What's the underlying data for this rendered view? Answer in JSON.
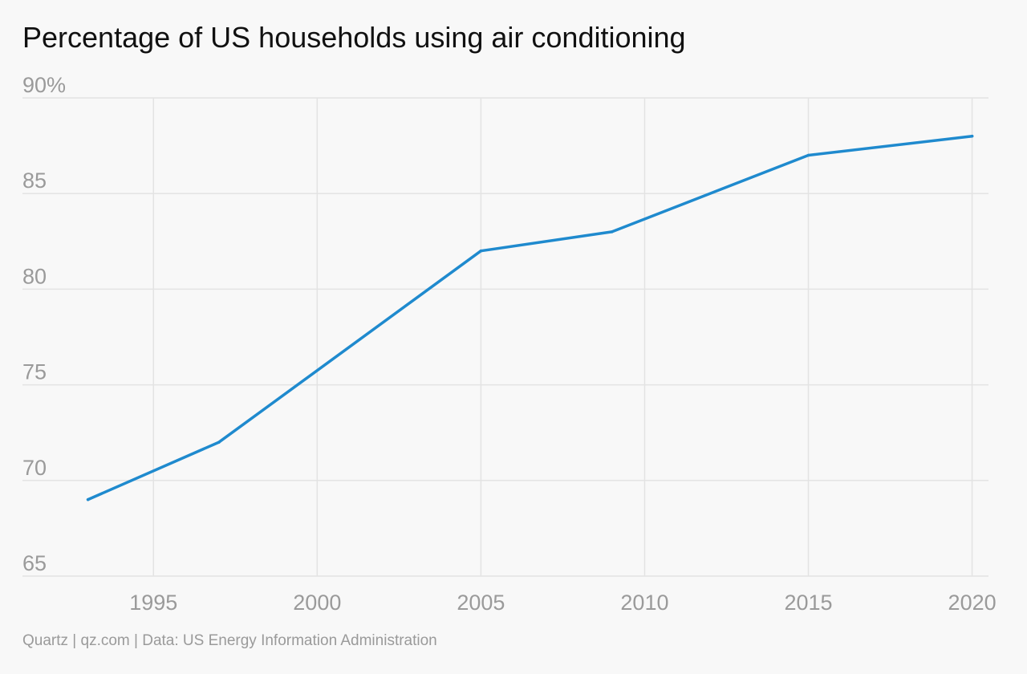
{
  "chart_data": {
    "type": "line",
    "title": "Percentage of US households using air conditioning",
    "xlabel": "",
    "ylabel": "",
    "xlim": [
      1991,
      2020.5
    ],
    "ylim": [
      65,
      90
    ],
    "x_ticks": [
      1995,
      2000,
      2005,
      2010,
      2015,
      2020
    ],
    "x_tick_labels": [
      "1995",
      "2000",
      "2005",
      "2010",
      "2015",
      "2020"
    ],
    "y_ticks": [
      90,
      85,
      80,
      75,
      70,
      65
    ],
    "y_tick_labels": [
      "90%",
      "85",
      "80",
      "75",
      "70",
      "65"
    ],
    "grid": true,
    "series": [
      {
        "x": [
          1993,
          1997,
          2005,
          2009,
          2015,
          2020
        ],
        "y": [
          69,
          72,
          82,
          83,
          87,
          88
        ],
        "color": "#1f8ace"
      }
    ]
  },
  "source": "Quartz | qz.com | Data: US Energy Information Administration",
  "colors": {
    "background": "#f8f8f8",
    "grid": "#e3e3e3",
    "tick_text": "#9a9a9a",
    "title_text": "#111111"
  }
}
